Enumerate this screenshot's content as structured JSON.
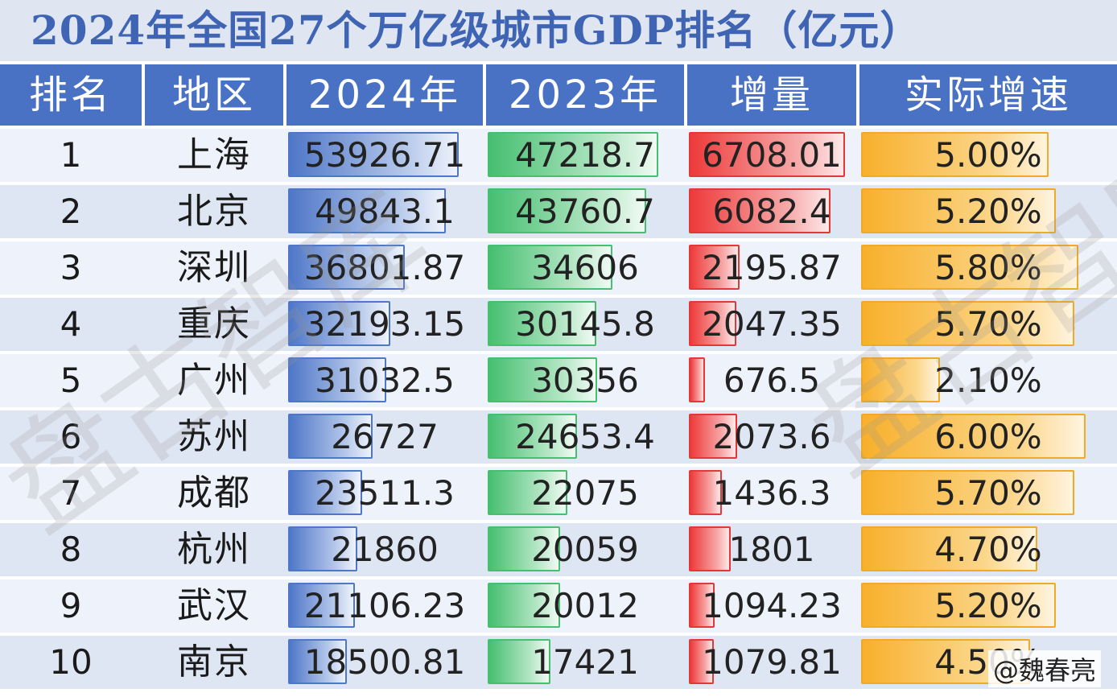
{
  "title": "2024年全国27个万亿级城市GDP排名（亿元）",
  "header": {
    "rank": "排名",
    "city": "地区",
    "gdp2024": "2024年",
    "gdp2023": "2023年",
    "increase": "增量",
    "growth": "实际增速"
  },
  "rows": [
    {
      "rank": "1",
      "city": "上海",
      "gdp2024": "53926.71",
      "gdp2023": "47218.7",
      "increase": "6708.01",
      "growth": "5.00%"
    },
    {
      "rank": "2",
      "city": "北京",
      "gdp2024": "49843.1",
      "gdp2023": "43760.7",
      "increase": "6082.4",
      "growth": "5.20%"
    },
    {
      "rank": "3",
      "city": "深圳",
      "gdp2024": "36801.87",
      "gdp2023": "34606",
      "increase": "2195.87",
      "growth": "5.80%"
    },
    {
      "rank": "4",
      "city": "重庆",
      "gdp2024": "32193.15",
      "gdp2023": "30145.8",
      "increase": "2047.35",
      "growth": "5.70%"
    },
    {
      "rank": "5",
      "city": "广州",
      "gdp2024": "31032.5",
      "gdp2023": "30356",
      "increase": "676.5",
      "growth": "2.10%"
    },
    {
      "rank": "6",
      "city": "苏州",
      "gdp2024": "26727",
      "gdp2023": "24653.4",
      "increase": "2073.6",
      "growth": "6.00%"
    },
    {
      "rank": "7",
      "city": "成都",
      "gdp2024": "23511.3",
      "gdp2023": "22075",
      "increase": "1436.3",
      "growth": "5.70%"
    },
    {
      "rank": "8",
      "city": "杭州",
      "gdp2024": "21860",
      "gdp2023": "20059",
      "increase": "1801",
      "growth": "4.70%"
    },
    {
      "rank": "9",
      "city": "武汉",
      "gdp2024": "21106.23",
      "gdp2023": "20012",
      "increase": "1094.23",
      "growth": "5.20%"
    },
    {
      "rank": "10",
      "city": "南京",
      "gdp2024": "18500.81",
      "gdp2023": "17421",
      "increase": "1079.81",
      "growth": "4.50%"
    }
  ],
  "chart_data": {
    "type": "table",
    "title": "2024年全国27个万亿级城市GDP排名（亿元）",
    "columns": [
      "排名",
      "地区",
      "2024年",
      "2023年",
      "增量",
      "实际增速"
    ],
    "categories": [
      "上海",
      "北京",
      "深圳",
      "重庆",
      "广州",
      "苏州",
      "成都",
      "杭州",
      "武汉",
      "南京"
    ],
    "series": [
      {
        "name": "2024年",
        "values": [
          53926.71,
          49843.1,
          36801.87,
          32193.15,
          31032.5,
          26727,
          23511.3,
          21860,
          21106.23,
          18500.81
        ]
      },
      {
        "name": "2023年",
        "values": [
          47218.7,
          43760.7,
          34606,
          30145.8,
          30356,
          24653.4,
          22075,
          20059,
          20012,
          17421
        ]
      },
      {
        "name": "增量",
        "values": [
          6708.01,
          6082.4,
          2195.87,
          2047.35,
          676.5,
          2073.6,
          1436.3,
          1801,
          1094.23,
          1079.81
        ]
      },
      {
        "name": "实际增速",
        "values": [
          5.0,
          5.2,
          5.8,
          5.7,
          2.1,
          6.0,
          5.7,
          4.7,
          5.2,
          4.5
        ]
      }
    ]
  },
  "colors": {
    "title_text": "#3f64b4",
    "header_bg": "#4a72c4",
    "bar_2024": "#4f77c8",
    "bar_2023": "#46bf70",
    "bar_increase": "#e23838",
    "bar_growth": "#f8b02c"
  },
  "watermark": "盘古智库",
  "credit": "@魏春亮"
}
